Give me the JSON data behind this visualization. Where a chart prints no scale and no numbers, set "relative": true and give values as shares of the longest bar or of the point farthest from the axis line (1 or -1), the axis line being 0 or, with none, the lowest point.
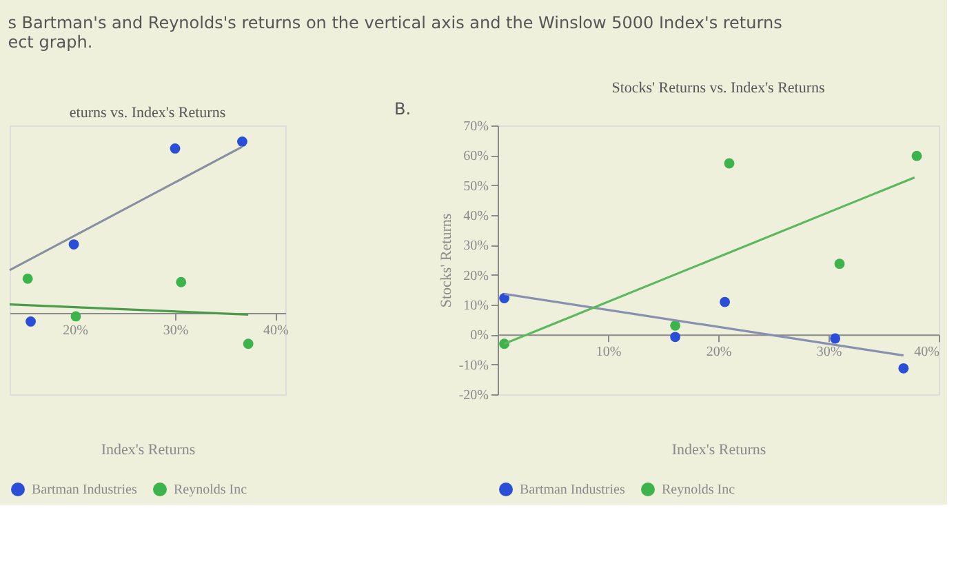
{
  "chart_data": [
    {
      "type": "scatter",
      "title": "eturns vs. Index's Returns",
      "xlabel": "Index's Returns",
      "relative": true,
      "marker": "circle",
      "legend": "bottom",
      "grid": false,
      "annotations": [
        "s Bartman's and Reynolds's returns on the vertical axis and the Winslow 5000 Index's returns",
        "ect graph."
      ],
      "xlim": [
        13.5,
        41
      ],
      "xticks": [
        {
          "value": 20,
          "label": "20%"
        },
        {
          "value": 30,
          "label": "30%"
        },
        {
          "value": 40,
          "label": "40%"
        }
      ],
      "series": [
        {
          "name": "Bartman Industries",
          "color": "#2a4fd6",
          "x": [
            15.6,
            19.9,
            30.0,
            36.7
          ],
          "values": [
            -0.05,
            0.4,
            0.96,
            1
          ]
        },
        {
          "name": "Reynolds Inc",
          "color": "#3cb44b",
          "x": [
            15.3,
            20.1,
            30.6,
            37.3
          ],
          "values": [
            0.2,
            -0.02,
            0.18,
            -0.18
          ]
        },
        {
          "type": "line",
          "color": "#8a8fa0",
          "marker": "none",
          "line_style": "solid",
          "x": [
            13.5,
            36.7
          ],
          "values": [
            0.25,
            0.97
          ]
        },
        {
          "type": "line",
          "color": "#4c9a4c",
          "marker": "none",
          "line_style": "solid",
          "x": [
            13.5,
            37.3
          ],
          "values": [
            0.05,
            -0.01
          ]
        }
      ]
    },
    {
      "type": "scatter",
      "title": "Stocks' Returns vs. Index's Returns",
      "xlabel": "Index's Returns",
      "ylabel": "Stocks' Returns",
      "marker": "circle",
      "legend": "bottom",
      "grid": false,
      "annotations": [
        "B."
      ],
      "xlim": [
        0,
        40
      ],
      "xticks": [
        {
          "value": 10,
          "label": "10%"
        },
        {
          "value": 20,
          "label": "20%"
        },
        {
          "value": 30,
          "label": "30%"
        },
        {
          "value": 40,
          "label": "40%"
        }
      ],
      "ylim": [
        -20,
        70
      ],
      "yticks": [
        {
          "value": -20,
          "label": "-20%"
        },
        {
          "value": -10,
          "label": "-10%"
        },
        {
          "value": 0,
          "label": "0%"
        },
        {
          "value": 10,
          "label": "10%"
        },
        {
          "value": 20,
          "label": "20%"
        },
        {
          "value": 30,
          "label": "30%"
        },
        {
          "value": 40,
          "label": "40%"
        },
        {
          "value": 50,
          "label": "50%"
        },
        {
          "value": 60,
          "label": "60%"
        },
        {
          "value": 70,
          "label": "70%"
        }
      ],
      "series": [
        {
          "name": "Bartman Industries",
          "color": "#2a4fd6",
          "x": [
            0.6,
            16.1,
            20.6,
            30.6,
            36.8
          ],
          "values": [
            12.2,
            -0.8,
            10.9,
            -1.3,
            -11.3
          ]
        },
        {
          "name": "Reynolds Inc",
          "color": "#3cb44b",
          "x": [
            0.6,
            16.1,
            21.0,
            31.0,
            38.0
          ],
          "values": [
            -3.1,
            3.0,
            57.3,
            23.7,
            59.8
          ]
        },
        {
          "type": "line",
          "color": "#8890b0",
          "marker": "none",
          "line_style": "solid",
          "x": [
            0.6,
            36.8
          ],
          "values": [
            13.6,
            -7.0
          ]
        },
        {
          "type": "line",
          "color": "#5cb85c",
          "marker": "none",
          "line_style": "solid",
          "x": [
            0.6,
            37.8
          ],
          "values": [
            -3.1,
            52.6
          ]
        }
      ]
    }
  ]
}
